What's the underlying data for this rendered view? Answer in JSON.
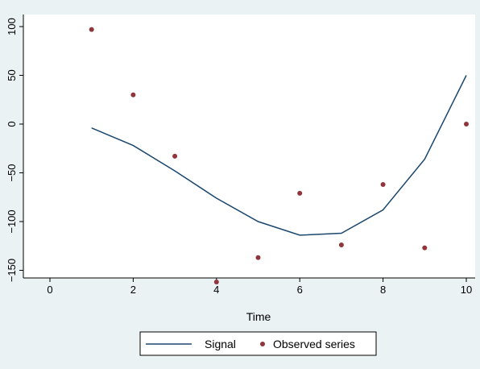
{
  "chart_data": {
    "type": "line",
    "title": "",
    "xlabel": "Time",
    "ylabel": "",
    "xlim": [
      0,
      10
    ],
    "ylim": [
      -150,
      100
    ],
    "xticks": [
      0,
      2,
      4,
      6,
      8,
      10
    ],
    "yticks": [
      -150,
      -100,
      -50,
      0,
      50,
      100
    ],
    "grid": false,
    "legend_position": "bottom",
    "series": [
      {
        "name": "Signal",
        "kind": "line",
        "color": "#1a476f",
        "x": [
          1,
          2,
          3,
          4,
          5,
          6,
          7,
          8,
          9,
          10
        ],
        "y": [
          -4,
          -22,
          -48,
          -76,
          -100,
          -114,
          -112,
          -88,
          -36,
          50
        ]
      },
      {
        "name": "Observed series",
        "kind": "scatter",
        "color": "#90353b",
        "x": [
          1,
          2,
          3,
          4,
          5,
          6,
          7,
          8,
          9,
          10
        ],
        "y": [
          97,
          30,
          -33,
          -162,
          -137,
          -71,
          -124,
          -62,
          -127,
          0
        ]
      }
    ]
  }
}
